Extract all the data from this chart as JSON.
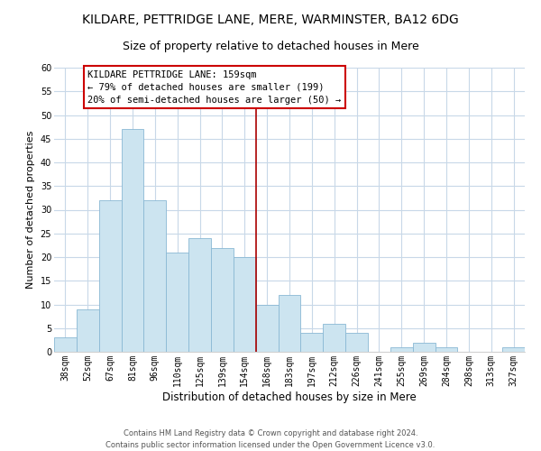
{
  "title": "KILDARE, PETTRIDGE LANE, MERE, WARMINSTER, BA12 6DG",
  "subtitle": "Size of property relative to detached houses in Mere",
  "xlabel": "Distribution of detached houses by size in Mere",
  "ylabel": "Number of detached properties",
  "bar_color": "#cce4f0",
  "bar_edge_color": "#8ab8d4",
  "background_color": "#ffffff",
  "grid_color": "#c8d8e8",
  "categories": [
    "38sqm",
    "52sqm",
    "67sqm",
    "81sqm",
    "96sqm",
    "110sqm",
    "125sqm",
    "139sqm",
    "154sqm",
    "168sqm",
    "183sqm",
    "197sqm",
    "212sqm",
    "226sqm",
    "241sqm",
    "255sqm",
    "269sqm",
    "284sqm",
    "298sqm",
    "313sqm",
    "327sqm"
  ],
  "values": [
    3,
    9,
    32,
    47,
    32,
    21,
    24,
    22,
    20,
    10,
    12,
    4,
    6,
    4,
    0,
    1,
    2,
    1,
    0,
    0,
    1
  ],
  "vline_x": 8.5,
  "vline_color": "#aa0000",
  "annotation_title": "KILDARE PETTRIDGE LANE: 159sqm",
  "annotation_line1": "← 79% of detached houses are smaller (199)",
  "annotation_line2": "20% of semi-detached houses are larger (50) →",
  "annotation_box_edge": "#cc0000",
  "annotation_box_face": "#ffffff",
  "ylim": [
    0,
    60
  ],
  "yticks": [
    0,
    5,
    10,
    15,
    20,
    25,
    30,
    35,
    40,
    45,
    50,
    55,
    60
  ],
  "footer_line1": "Contains HM Land Registry data © Crown copyright and database right 2024.",
  "footer_line2": "Contains public sector information licensed under the Open Government Licence v3.0.",
  "title_fontsize": 10,
  "subtitle_fontsize": 9,
  "xlabel_fontsize": 8.5,
  "ylabel_fontsize": 8,
  "tick_fontsize": 7,
  "annotation_fontsize": 7.5,
  "footer_fontsize": 6
}
